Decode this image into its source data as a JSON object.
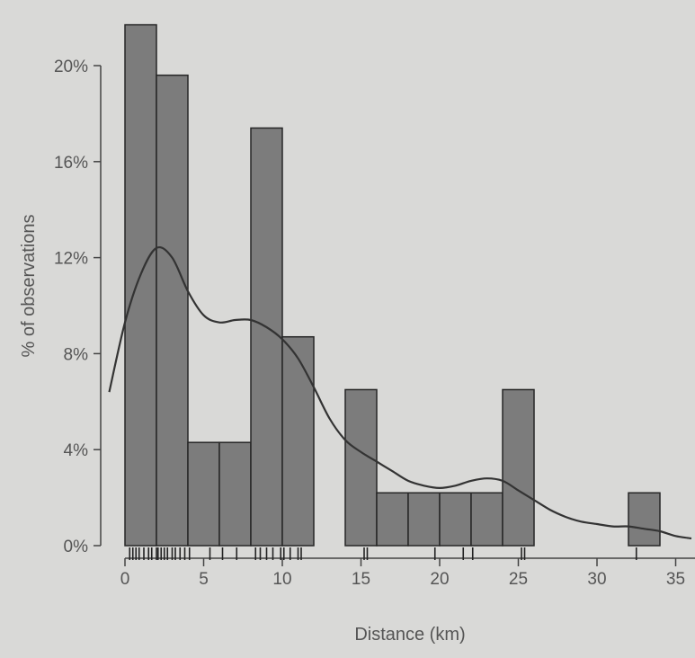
{
  "chart_data": {
    "type": "bar",
    "subtype": "histogram-with-density",
    "title": "",
    "xlabel": "Distance (km)",
    "ylabel": "% of observations",
    "xlim": [
      -1,
      36
    ],
    "ylim": [
      0,
      22
    ],
    "x_ticks": [
      0,
      5,
      10,
      15,
      20,
      25,
      30,
      35
    ],
    "x_tick_labels": [
      "0",
      "5",
      "10",
      "15",
      "20",
      "25",
      "30",
      "35"
    ],
    "y_ticks": [
      0,
      4,
      8,
      12,
      16,
      20
    ],
    "y_tick_labels": [
      "0%",
      "4%",
      "8%",
      "12%",
      "16%",
      "20%"
    ],
    "bins": [
      {
        "from": 0,
        "to": 2,
        "percent": 21.7
      },
      {
        "from": 2,
        "to": 4,
        "percent": 19.6
      },
      {
        "from": 4,
        "to": 6,
        "percent": 4.3
      },
      {
        "from": 6,
        "to": 8,
        "percent": 4.3
      },
      {
        "from": 8,
        "to": 10,
        "percent": 17.4
      },
      {
        "from": 10,
        "to": 12,
        "percent": 8.7
      },
      {
        "from": 12,
        "to": 14,
        "percent": 0
      },
      {
        "from": 14,
        "to": 16,
        "percent": 6.5
      },
      {
        "from": 16,
        "to": 18,
        "percent": 2.2
      },
      {
        "from": 18,
        "to": 20,
        "percent": 2.2
      },
      {
        "from": 20,
        "to": 22,
        "percent": 2.2
      },
      {
        "from": 22,
        "to": 24,
        "percent": 2.2
      },
      {
        "from": 24,
        "to": 26,
        "percent": 6.5
      },
      {
        "from": 26,
        "to": 28,
        "percent": 0
      },
      {
        "from": 28,
        "to": 30,
        "percent": 0
      },
      {
        "from": 30,
        "to": 32,
        "percent": 0
      },
      {
        "from": 32,
        "to": 34,
        "percent": 2.2
      }
    ],
    "density_curve": {
      "x": [
        -1,
        0,
        1,
        2,
        3,
        4,
        5,
        6,
        7,
        8,
        9,
        10,
        11,
        12,
        13,
        14,
        15,
        16,
        17,
        18,
        19,
        20,
        21,
        22,
        23,
        24,
        25,
        26,
        27,
        28,
        29,
        30,
        31,
        32,
        33,
        34,
        35,
        36
      ],
      "y": [
        6.4,
        9.3,
        11.3,
        12.4,
        12.0,
        10.6,
        9.6,
        9.3,
        9.4,
        9.4,
        9.1,
        8.6,
        7.8,
        6.6,
        5.3,
        4.4,
        3.9,
        3.5,
        3.1,
        2.7,
        2.5,
        2.4,
        2.5,
        2.7,
        2.8,
        2.7,
        2.3,
        1.9,
        1.5,
        1.2,
        1.0,
        0.9,
        0.8,
        0.8,
        0.7,
        0.6,
        0.4,
        0.3
      ]
    },
    "rug": [
      0.3,
      0.5,
      0.7,
      0.9,
      1.2,
      1.5,
      1.7,
      2.0,
      2.1,
      2.3,
      2.5,
      2.7,
      3.0,
      3.2,
      3.5,
      3.8,
      4.1,
      5.4,
      6.2,
      7.1,
      8.3,
      8.6,
      9.0,
      9.4,
      9.9,
      10.1,
      10.5,
      11.0,
      11.2,
      15.2,
      15.4,
      19.7,
      21.5,
      22.1,
      25.2,
      25.4,
      32.5
    ],
    "bar_color": "#7c7c7c",
    "line_color": "#333333",
    "grid": false,
    "legend": "none"
  }
}
